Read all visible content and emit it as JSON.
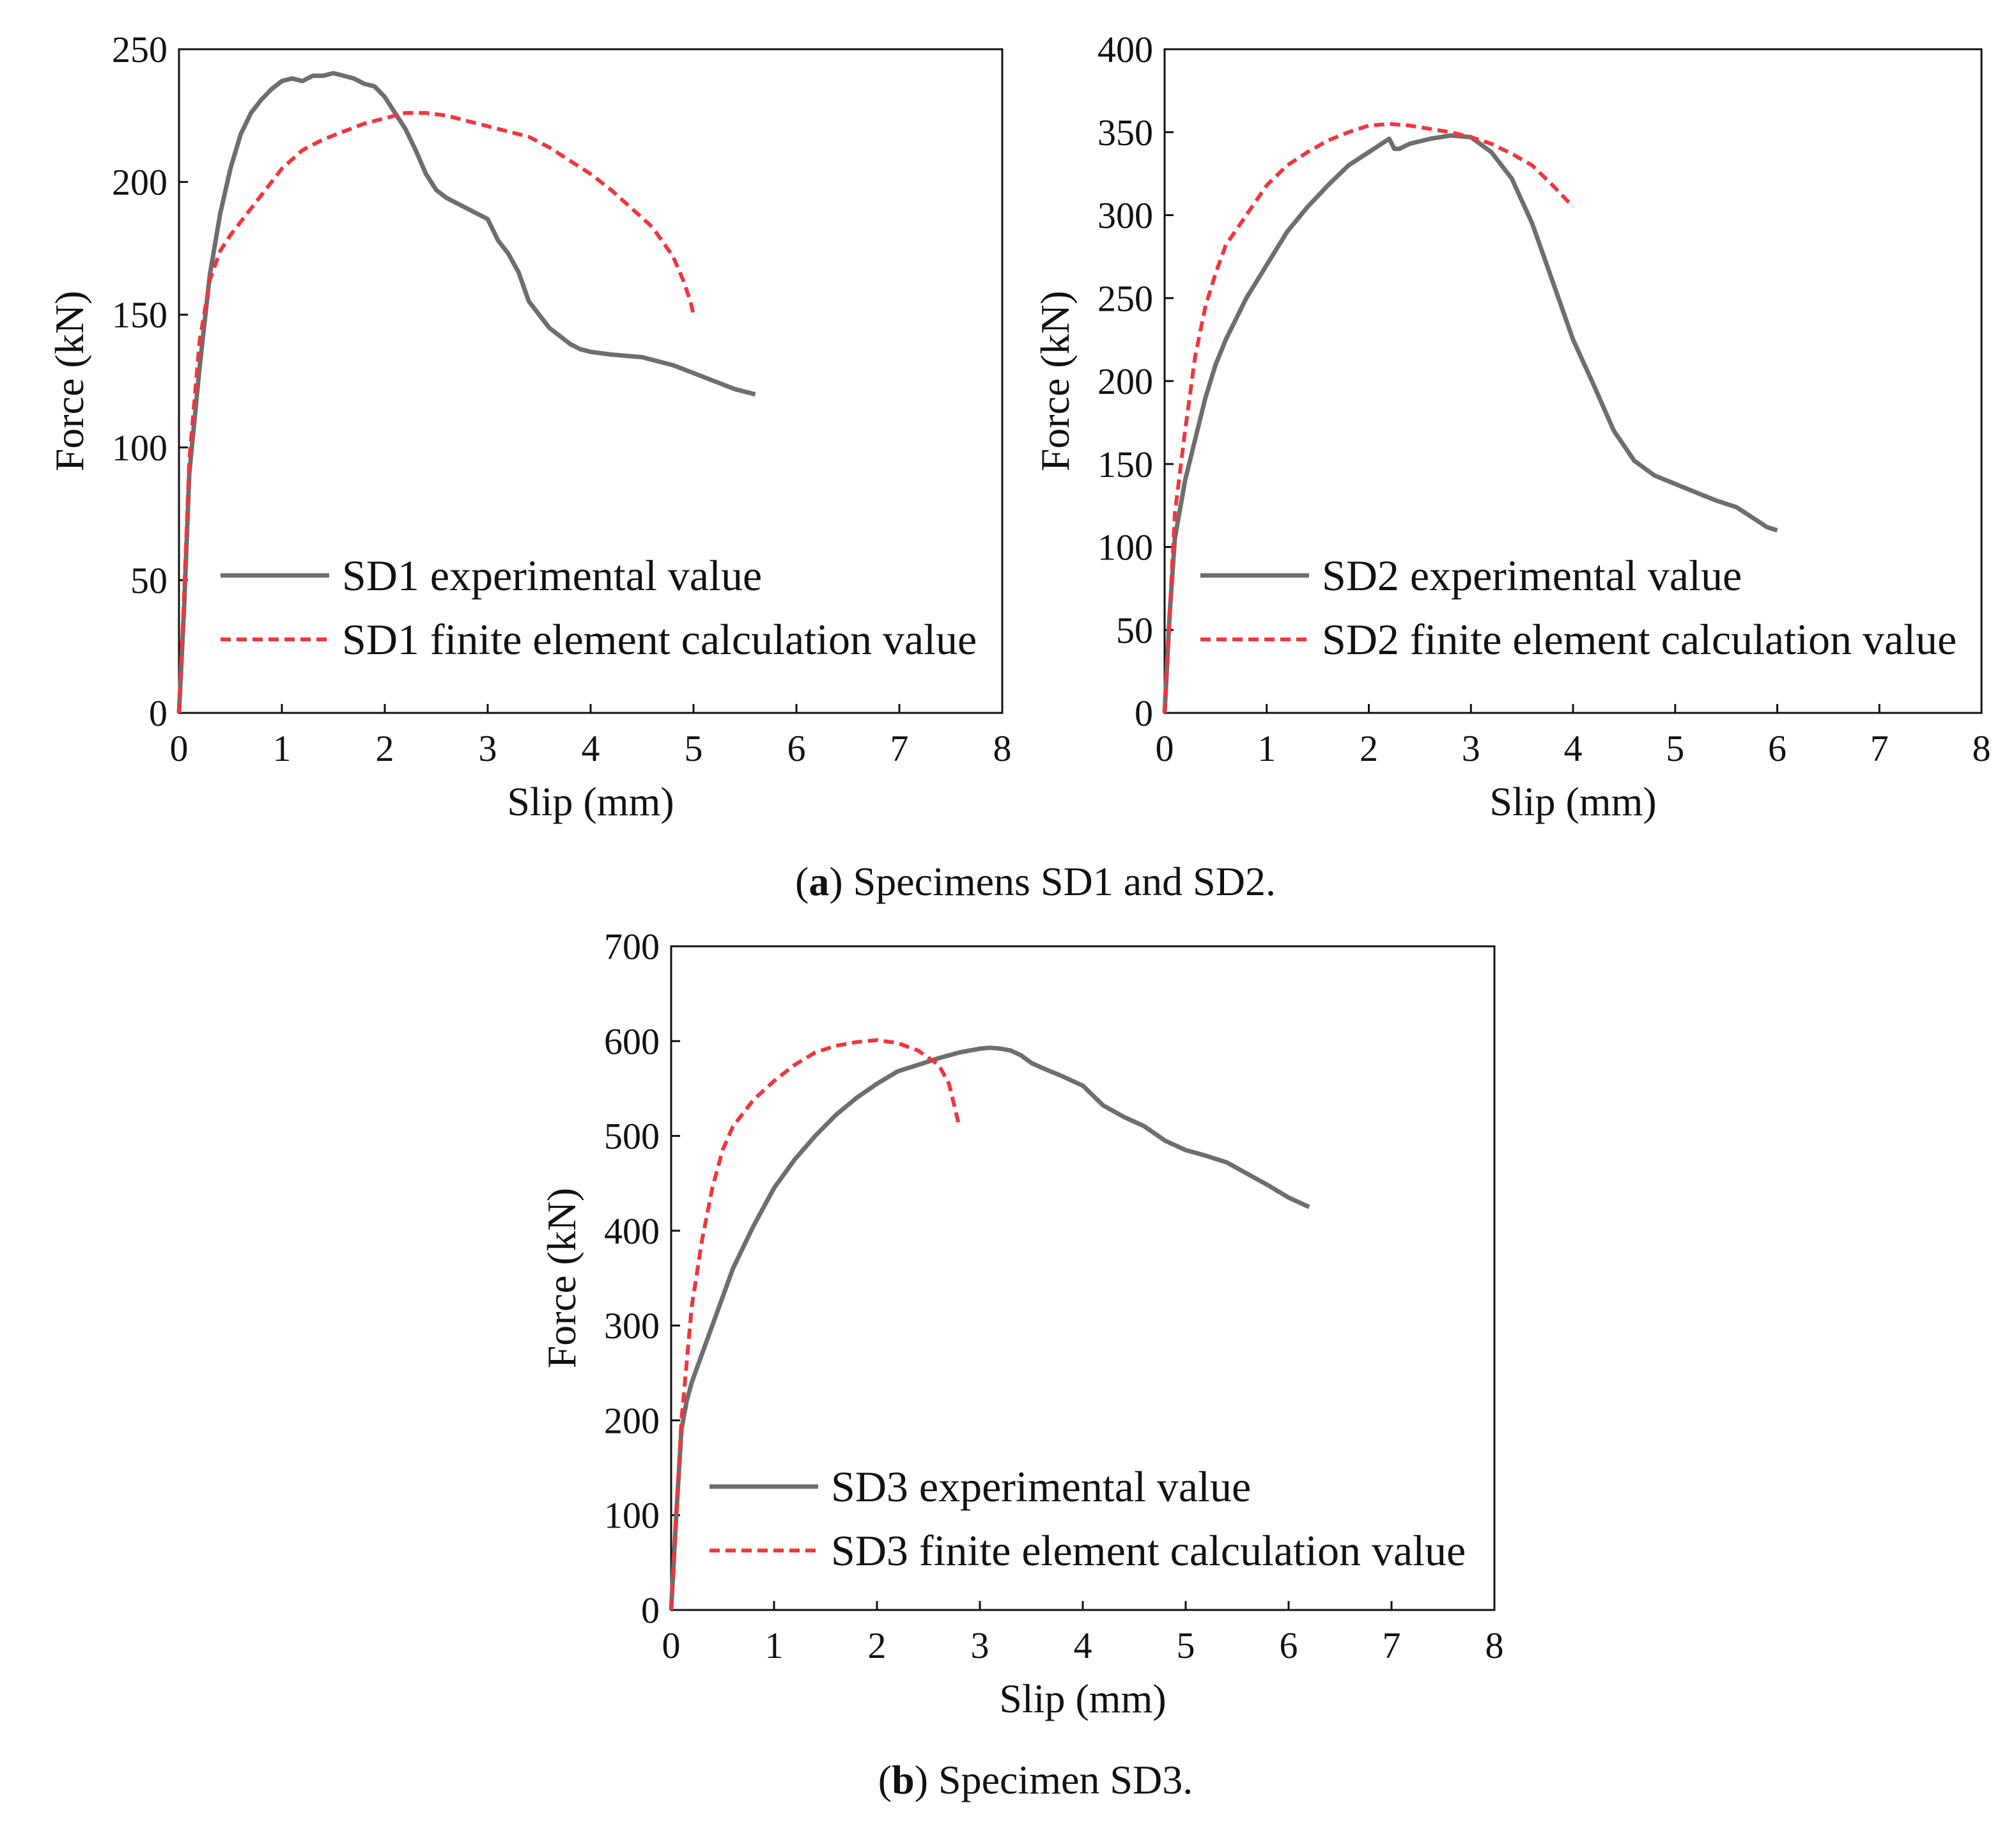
{
  "colors": {
    "experimental": "#6e6e6e",
    "finite_element": "#f0363c",
    "axis": "#111111"
  },
  "captions": {
    "a_letter": "a",
    "a_text": "Specimens SD1 and SD2.",
    "b_letter": "b",
    "b_text": "Specimen SD3."
  },
  "chart_data": [
    {
      "id": "sd1",
      "type": "line",
      "xlabel": "Slip (mm)",
      "ylabel": "Force (kN)",
      "xlim": [
        0,
        8
      ],
      "ylim": [
        0,
        250
      ],
      "xticks": [
        "0",
        "1",
        "2",
        "3",
        "4",
        "5",
        "6",
        "7",
        "8"
      ],
      "yticks": [
        "0",
        "50",
        "100",
        "150",
        "200",
        "250"
      ],
      "legend_position": "bottom-left",
      "series": [
        {
          "name": "SD1 experimental value",
          "style": "solid",
          "points": [
            [
              0,
              0
            ],
            [
              0.05,
              40
            ],
            [
              0.1,
              90
            ],
            [
              0.2,
              130
            ],
            [
              0.3,
              165
            ],
            [
              0.4,
              188
            ],
            [
              0.5,
              205
            ],
            [
              0.6,
              218
            ],
            [
              0.7,
              226
            ],
            [
              0.8,
              231
            ],
            [
              0.9,
              235
            ],
            [
              1.0,
              238
            ],
            [
              1.1,
              239
            ],
            [
              1.2,
              238
            ],
            [
              1.3,
              240
            ],
            [
              1.4,
              240
            ],
            [
              1.5,
              241
            ],
            [
              1.6,
              240
            ],
            [
              1.7,
              239
            ],
            [
              1.8,
              237
            ],
            [
              1.9,
              236
            ],
            [
              2.0,
              232
            ],
            [
              2.1,
              226
            ],
            [
              2.2,
              220
            ],
            [
              2.3,
              212
            ],
            [
              2.4,
              203
            ],
            [
              2.5,
              197
            ],
            [
              2.6,
              194
            ],
            [
              2.8,
              190
            ],
            [
              2.9,
              188
            ],
            [
              3.0,
              186
            ],
            [
              3.1,
              178
            ],
            [
              3.2,
              173
            ],
            [
              3.3,
              166
            ],
            [
              3.4,
              155
            ],
            [
              3.5,
              150
            ],
            [
              3.6,
              145
            ],
            [
              3.7,
              142
            ],
            [
              3.8,
              139
            ],
            [
              3.9,
              137
            ],
            [
              4.0,
              136
            ],
            [
              4.2,
              135
            ],
            [
              4.5,
              134
            ],
            [
              4.8,
              131
            ],
            [
              5.0,
              128
            ],
            [
              5.2,
              125
            ],
            [
              5.4,
              122
            ],
            [
              5.6,
              120
            ]
          ]
        },
        {
          "name": "SD1 finite element calculation value",
          "style": "dashed",
          "points": [
            [
              0,
              0
            ],
            [
              0.05,
              45
            ],
            [
              0.1,
              95
            ],
            [
              0.2,
              140
            ],
            [
              0.3,
              163
            ],
            [
              0.4,
              174
            ],
            [
              0.5,
              180
            ],
            [
              0.6,
              185
            ],
            [
              0.7,
              190
            ],
            [
              0.8,
              195
            ],
            [
              0.9,
              200
            ],
            [
              1.0,
              205
            ],
            [
              1.2,
              212
            ],
            [
              1.4,
              216
            ],
            [
              1.6,
              219
            ],
            [
              1.8,
              222
            ],
            [
              2.0,
              224
            ],
            [
              2.2,
              226
            ],
            [
              2.4,
              226
            ],
            [
              2.6,
              225
            ],
            [
              2.8,
              223
            ],
            [
              3.0,
              221
            ],
            [
              3.2,
              219
            ],
            [
              3.4,
              217
            ],
            [
              3.6,
              213
            ],
            [
              3.8,
              208
            ],
            [
              4.0,
              203
            ],
            [
              4.2,
              197
            ],
            [
              4.4,
              190
            ],
            [
              4.6,
              183
            ],
            [
              4.8,
              172
            ],
            [
              4.9,
              163
            ],
            [
              4.97,
              155
            ],
            [
              5.0,
              150
            ]
          ]
        }
      ]
    },
    {
      "id": "sd2",
      "type": "line",
      "xlabel": "Slip (mm)",
      "ylabel": "Force (kN)",
      "xlim": [
        0,
        8
      ],
      "ylim": [
        0,
        400
      ],
      "xticks": [
        "0",
        "1",
        "2",
        "3",
        "4",
        "5",
        "6",
        "7",
        "8"
      ],
      "yticks": [
        "0",
        "50",
        "100",
        "150",
        "200",
        "250",
        "300",
        "350",
        "400"
      ],
      "legend_position": "bottom-left",
      "series": [
        {
          "name": "SD2 experimental value",
          "style": "solid",
          "points": [
            [
              0,
              0
            ],
            [
              0.05,
              60
            ],
            [
              0.1,
              105
            ],
            [
              0.2,
              140
            ],
            [
              0.3,
              165
            ],
            [
              0.4,
              190
            ],
            [
              0.5,
              210
            ],
            [
              0.6,
              225
            ],
            [
              0.8,
              250
            ],
            [
              1.0,
              270
            ],
            [
              1.2,
              290
            ],
            [
              1.4,
              305
            ],
            [
              1.6,
              318
            ],
            [
              1.8,
              330
            ],
            [
              2.0,
              338
            ],
            [
              2.1,
              342
            ],
            [
              2.2,
              346
            ],
            [
              2.25,
              340
            ],
            [
              2.3,
              340
            ],
            [
              2.4,
              343
            ],
            [
              2.6,
              346
            ],
            [
              2.8,
              348
            ],
            [
              3.0,
              347
            ],
            [
              3.2,
              338
            ],
            [
              3.4,
              322
            ],
            [
              3.6,
              295
            ],
            [
              3.8,
              260
            ],
            [
              4.0,
              225
            ],
            [
              4.2,
              198
            ],
            [
              4.4,
              170
            ],
            [
              4.6,
              152
            ],
            [
              4.8,
              143
            ],
            [
              5.0,
              138
            ],
            [
              5.2,
              133
            ],
            [
              5.4,
              128
            ],
            [
              5.6,
              124
            ],
            [
              5.8,
              116
            ],
            [
              5.9,
              112
            ],
            [
              6.0,
              110
            ]
          ]
        },
        {
          "name": "SD2 finite element calculation value",
          "style": "dashed",
          "points": [
            [
              0,
              0
            ],
            [
              0.05,
              60
            ],
            [
              0.1,
              120
            ],
            [
              0.2,
              170
            ],
            [
              0.3,
              215
            ],
            [
              0.4,
              245
            ],
            [
              0.5,
              265
            ],
            [
              0.6,
              282
            ],
            [
              0.8,
              300
            ],
            [
              1.0,
              318
            ],
            [
              1.2,
              330
            ],
            [
              1.4,
              338
            ],
            [
              1.6,
              345
            ],
            [
              1.8,
              350
            ],
            [
              2.0,
              354
            ],
            [
              2.2,
              355
            ],
            [
              2.4,
              354
            ],
            [
              2.6,
              352
            ],
            [
              2.8,
              350
            ],
            [
              3.0,
              347
            ],
            [
              3.2,
              343
            ],
            [
              3.4,
              337
            ],
            [
              3.6,
              330
            ],
            [
              3.8,
              318
            ],
            [
              4.0,
              305
            ]
          ]
        }
      ]
    },
    {
      "id": "sd3",
      "type": "line",
      "xlabel": "Slip (mm)",
      "ylabel": "Force (kN)",
      "xlim": [
        0,
        8
      ],
      "ylim": [
        0,
        700
      ],
      "xticks": [
        "0",
        "1",
        "2",
        "3",
        "4",
        "5",
        "6",
        "7",
        "8"
      ],
      "yticks": [
        "0",
        "100",
        "200",
        "300",
        "400",
        "500",
        "600",
        "700"
      ],
      "legend_position": "bottom-right",
      "series": [
        {
          "name": "SD3 experimental value",
          "style": "solid",
          "points": [
            [
              0,
              0
            ],
            [
              0.05,
              100
            ],
            [
              0.1,
              190
            ],
            [
              0.15,
              220
            ],
            [
              0.2,
              240
            ],
            [
              0.3,
              270
            ],
            [
              0.4,
              300
            ],
            [
              0.5,
              330
            ],
            [
              0.6,
              360
            ],
            [
              0.8,
              405
            ],
            [
              1.0,
              445
            ],
            [
              1.2,
              475
            ],
            [
              1.4,
              500
            ],
            [
              1.6,
              522
            ],
            [
              1.8,
              540
            ],
            [
              2.0,
              555
            ],
            [
              2.2,
              568
            ],
            [
              2.4,
              575
            ],
            [
              2.6,
              582
            ],
            [
              2.8,
              588
            ],
            [
              3.0,
              592
            ],
            [
              3.1,
              593
            ],
            [
              3.2,
              592
            ],
            [
              3.3,
              590
            ],
            [
              3.4,
              585
            ],
            [
              3.5,
              577
            ],
            [
              3.6,
              572
            ],
            [
              3.8,
              563
            ],
            [
              4.0,
              553
            ],
            [
              4.2,
              532
            ],
            [
              4.4,
              520
            ],
            [
              4.6,
              510
            ],
            [
              4.8,
              495
            ],
            [
              5.0,
              485
            ],
            [
              5.2,
              479
            ],
            [
              5.4,
              472
            ],
            [
              5.6,
              460
            ],
            [
              5.8,
              448
            ],
            [
              6.0,
              435
            ],
            [
              6.2,
              425
            ]
          ]
        },
        {
          "name": "SD3 finite element calculation value",
          "style": "dashed",
          "points": [
            [
              0,
              0
            ],
            [
              0.05,
              100
            ],
            [
              0.1,
              200
            ],
            [
              0.15,
              260
            ],
            [
              0.2,
              320
            ],
            [
              0.3,
              390
            ],
            [
              0.4,
              445
            ],
            [
              0.5,
              485
            ],
            [
              0.6,
              510
            ],
            [
              0.8,
              538
            ],
            [
              1.0,
              558
            ],
            [
              1.2,
              575
            ],
            [
              1.4,
              588
            ],
            [
              1.6,
              595
            ],
            [
              1.8,
              599
            ],
            [
              2.0,
              601
            ],
            [
              2.2,
              598
            ],
            [
              2.4,
              590
            ],
            [
              2.6,
              575
            ],
            [
              2.7,
              555
            ],
            [
              2.8,
              510
            ]
          ]
        }
      ]
    }
  ]
}
